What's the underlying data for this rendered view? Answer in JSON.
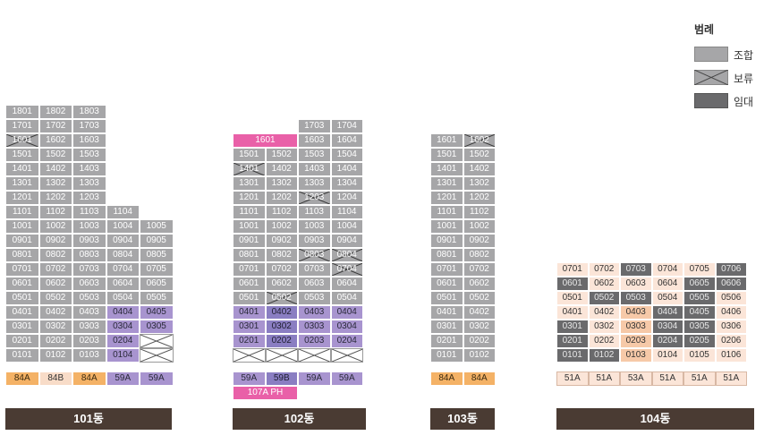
{
  "legend": {
    "title": "범례",
    "items": [
      {
        "label": "조합",
        "kind": "gray"
      },
      {
        "label": "보류",
        "kind": "hold"
      },
      {
        "label": "임대",
        "kind": "dark"
      }
    ]
  },
  "buildings": [
    {
      "name": "101동",
      "rows": [
        [
          [
            "1801",
            "gray"
          ],
          [
            "1802",
            "gray"
          ],
          [
            "1803",
            "gray"
          ]
        ],
        [
          [
            "1701",
            "gray"
          ],
          [
            "1702",
            "gray"
          ],
          [
            "1703",
            "gray"
          ]
        ],
        [
          [
            "1601",
            "hold"
          ],
          [
            "1602",
            "gray"
          ],
          [
            "1603",
            "gray"
          ]
        ],
        [
          [
            "1501",
            "gray"
          ],
          [
            "1502",
            "gray"
          ],
          [
            "1503",
            "gray"
          ]
        ],
        [
          [
            "1401",
            "gray"
          ],
          [
            "1402",
            "gray"
          ],
          [
            "1403",
            "gray"
          ]
        ],
        [
          [
            "1301",
            "gray"
          ],
          [
            "1302",
            "gray"
          ],
          [
            "1303",
            "gray"
          ]
        ],
        [
          [
            "1201",
            "gray"
          ],
          [
            "1202",
            "gray"
          ],
          [
            "1203",
            "gray"
          ]
        ],
        [
          [
            "1101",
            "gray"
          ],
          [
            "1102",
            "gray"
          ],
          [
            "1103",
            "gray"
          ],
          [
            "1104",
            "gray"
          ]
        ],
        [
          [
            "1001",
            "gray"
          ],
          [
            "1002",
            "gray"
          ],
          [
            "1003",
            "gray"
          ],
          [
            "1004",
            "gray"
          ],
          [
            "1005",
            "gray"
          ]
        ],
        [
          [
            "0901",
            "gray"
          ],
          [
            "0902",
            "gray"
          ],
          [
            "0903",
            "gray"
          ],
          [
            "0904",
            "gray"
          ],
          [
            "0905",
            "gray"
          ]
        ],
        [
          [
            "0801",
            "gray"
          ],
          [
            "0802",
            "gray"
          ],
          [
            "0803",
            "gray"
          ],
          [
            "0804",
            "gray"
          ],
          [
            "0805",
            "gray"
          ]
        ],
        [
          [
            "0701",
            "gray"
          ],
          [
            "0702",
            "gray"
          ],
          [
            "0703",
            "gray"
          ],
          [
            "0704",
            "gray"
          ],
          [
            "0705",
            "gray"
          ]
        ],
        [
          [
            "0601",
            "gray"
          ],
          [
            "0602",
            "gray"
          ],
          [
            "0603",
            "gray"
          ],
          [
            "0604",
            "gray"
          ],
          [
            "0605",
            "gray"
          ]
        ],
        [
          [
            "0501",
            "gray"
          ],
          [
            "0502",
            "gray"
          ],
          [
            "0503",
            "gray"
          ],
          [
            "0504",
            "gray"
          ],
          [
            "0505",
            "gray"
          ]
        ],
        [
          [
            "0401",
            "gray"
          ],
          [
            "0402",
            "gray"
          ],
          [
            "0403",
            "gray"
          ],
          [
            "0404",
            "purple"
          ],
          [
            "0405",
            "purple"
          ]
        ],
        [
          [
            "0301",
            "gray"
          ],
          [
            "0302",
            "gray"
          ],
          [
            "0303",
            "gray"
          ],
          [
            "0304",
            "purple"
          ],
          [
            "0305",
            "purple"
          ]
        ],
        [
          [
            "0201",
            "gray"
          ],
          [
            "0202",
            "gray"
          ],
          [
            "0203",
            "gray"
          ],
          [
            "0204",
            "purple"
          ],
          [
            "",
            "white-x"
          ]
        ],
        [
          [
            "0101",
            "gray"
          ],
          [
            "0102",
            "gray"
          ],
          [
            "0103",
            "gray"
          ],
          [
            "0104",
            "purple"
          ],
          [
            "",
            "white-x"
          ]
        ]
      ],
      "types": [
        [
          "84A",
          "orange"
        ],
        [
          "84B",
          "peach"
        ],
        [
          "84A",
          "orange"
        ],
        [
          "59A",
          "purple"
        ],
        [
          "59A",
          "purple"
        ]
      ],
      "extra_types": []
    },
    {
      "name": "102동",
      "rows": [
        [
          null,
          null,
          [
            "1703",
            "gray"
          ],
          [
            "1704",
            "gray"
          ]
        ],
        [
          [
            "1601",
            "pink",
            2
          ],
          [
            "1603",
            "gray"
          ],
          [
            "1604",
            "gray"
          ]
        ],
        [
          [
            "1501",
            "gray"
          ],
          [
            "1502",
            "gray"
          ],
          [
            "1503",
            "gray"
          ],
          [
            "1504",
            "gray"
          ]
        ],
        [
          [
            "1401",
            "hold"
          ],
          [
            "1402",
            "gray"
          ],
          [
            "1403",
            "gray"
          ],
          [
            "1404",
            "gray"
          ]
        ],
        [
          [
            "1301",
            "gray"
          ],
          [
            "1302",
            "gray"
          ],
          [
            "1303",
            "gray"
          ],
          [
            "1304",
            "gray"
          ]
        ],
        [
          [
            "1201",
            "gray"
          ],
          [
            "1202",
            "gray"
          ],
          [
            "1203",
            "hold"
          ],
          [
            "1204",
            "gray"
          ]
        ],
        [
          [
            "1101",
            "gray"
          ],
          [
            "1102",
            "gray"
          ],
          [
            "1103",
            "gray"
          ],
          [
            "1104",
            "gray"
          ]
        ],
        [
          [
            "1001",
            "gray"
          ],
          [
            "1002",
            "gray"
          ],
          [
            "1003",
            "gray"
          ],
          [
            "1004",
            "gray"
          ]
        ],
        [
          [
            "0901",
            "gray"
          ],
          [
            "0902",
            "gray"
          ],
          [
            "0903",
            "gray"
          ],
          [
            "0904",
            "gray"
          ]
        ],
        [
          [
            "0801",
            "gray"
          ],
          [
            "0802",
            "gray"
          ],
          [
            "0803",
            "hold"
          ],
          [
            "0804",
            "hold"
          ]
        ],
        [
          [
            "0701",
            "gray"
          ],
          [
            "0702",
            "gray"
          ],
          [
            "0703",
            "gray"
          ],
          [
            "0704",
            "hold"
          ]
        ],
        [
          [
            "0601",
            "gray"
          ],
          [
            "0602",
            "gray"
          ],
          [
            "0603",
            "gray"
          ],
          [
            "0604",
            "gray"
          ]
        ],
        [
          [
            "0501",
            "gray"
          ],
          [
            "0502",
            "hold"
          ],
          [
            "0503",
            "gray"
          ],
          [
            "0504",
            "gray"
          ]
        ],
        [
          [
            "0401",
            "purple"
          ],
          [
            "0402",
            "purple2"
          ],
          [
            "0403",
            "purple"
          ],
          [
            "0404",
            "purple"
          ]
        ],
        [
          [
            "0301",
            "purple"
          ],
          [
            "0302",
            "purple2"
          ],
          [
            "0303",
            "purple"
          ],
          [
            "0304",
            "purple"
          ]
        ],
        [
          [
            "0201",
            "purple"
          ],
          [
            "0202",
            "purple2"
          ],
          [
            "0203",
            "purple"
          ],
          [
            "0204",
            "purple"
          ]
        ],
        [
          [
            "",
            "white-x"
          ],
          [
            "",
            "white-x"
          ],
          [
            "",
            "white-x"
          ],
          [
            "",
            "white-x"
          ]
        ]
      ],
      "types": [
        [
          "59A",
          "purple"
        ],
        [
          "59B",
          "purple2"
        ],
        [
          "59A",
          "purple"
        ],
        [
          "59A",
          "purple"
        ]
      ],
      "extra_types": [
        [
          "107A PH",
          "pink"
        ]
      ]
    },
    {
      "name": "103동",
      "rows": [
        [
          [
            "1601",
            "gray"
          ],
          [
            "1602",
            "hold"
          ]
        ],
        [
          [
            "1501",
            "gray"
          ],
          [
            "1502",
            "gray"
          ]
        ],
        [
          [
            "1401",
            "gray"
          ],
          [
            "1402",
            "gray"
          ]
        ],
        [
          [
            "1301",
            "gray"
          ],
          [
            "1302",
            "gray"
          ]
        ],
        [
          [
            "1201",
            "gray"
          ],
          [
            "1202",
            "gray"
          ]
        ],
        [
          [
            "1101",
            "gray"
          ],
          [
            "1102",
            "gray"
          ]
        ],
        [
          [
            "1001",
            "gray"
          ],
          [
            "1002",
            "gray"
          ]
        ],
        [
          [
            "0901",
            "gray"
          ],
          [
            "0902",
            "gray"
          ]
        ],
        [
          [
            "0801",
            "gray"
          ],
          [
            "0802",
            "gray"
          ]
        ],
        [
          [
            "0701",
            "gray"
          ],
          [
            "0702",
            "gray"
          ]
        ],
        [
          [
            "0601",
            "gray"
          ],
          [
            "0602",
            "gray"
          ]
        ],
        [
          [
            "0501",
            "gray"
          ],
          [
            "0502",
            "gray"
          ]
        ],
        [
          [
            "0401",
            "gray"
          ],
          [
            "0402",
            "gray"
          ]
        ],
        [
          [
            "0301",
            "gray"
          ],
          [
            "0302",
            "gray"
          ]
        ],
        [
          [
            "0201",
            "gray"
          ],
          [
            "0202",
            "gray"
          ]
        ],
        [
          [
            "0101",
            "gray"
          ],
          [
            "0102",
            "gray"
          ]
        ]
      ],
      "types": [
        [
          "84A",
          "orange"
        ],
        [
          "84A",
          "orange"
        ]
      ],
      "extra_types": []
    },
    {
      "name": "104동",
      "rows": [
        [
          [
            "0701",
            "peach"
          ],
          [
            "0702",
            "peach"
          ],
          [
            "0703",
            "dark"
          ],
          [
            "0704",
            "peach"
          ],
          [
            "0705",
            "peach"
          ],
          [
            "0706",
            "dark"
          ]
        ],
        [
          [
            "0601",
            "dark"
          ],
          [
            "0602",
            "peach"
          ],
          [
            "0603",
            "peach"
          ],
          [
            "0604",
            "peach"
          ],
          [
            "0605",
            "dark"
          ],
          [
            "0606",
            "dark"
          ]
        ],
        [
          [
            "0501",
            "peach"
          ],
          [
            "0502",
            "dark"
          ],
          [
            "0503",
            "dark"
          ],
          [
            "0504",
            "peach"
          ],
          [
            "0505",
            "dark"
          ],
          [
            "0506",
            "peach"
          ]
        ],
        [
          [
            "0401",
            "peach"
          ],
          [
            "0402",
            "peach"
          ],
          [
            "0403",
            "peach2"
          ],
          [
            "0404",
            "dark"
          ],
          [
            "0405",
            "dark"
          ],
          [
            "0406",
            "peach"
          ]
        ],
        [
          [
            "0301",
            "dark"
          ],
          [
            "0302",
            "peach"
          ],
          [
            "0303",
            "peach2"
          ],
          [
            "0304",
            "dark"
          ],
          [
            "0305",
            "dark"
          ],
          [
            "0306",
            "peach"
          ]
        ],
        [
          [
            "0201",
            "dark"
          ],
          [
            "0202",
            "peach"
          ],
          [
            "0203",
            "peach2"
          ],
          [
            "0204",
            "dark"
          ],
          [
            "0205",
            "dark"
          ],
          [
            "0206",
            "peach"
          ]
        ],
        [
          [
            "0101",
            "dark"
          ],
          [
            "0102",
            "dark"
          ],
          [
            "0103",
            "peach2"
          ],
          [
            "0104",
            "peach"
          ],
          [
            "0105",
            "peach"
          ],
          [
            "0106",
            "peach"
          ]
        ]
      ],
      "types": [
        [
          "51A",
          "white"
        ],
        [
          "51A",
          "white"
        ],
        [
          "53A",
          "white"
        ],
        [
          "51A",
          "white"
        ],
        [
          "51A",
          "white"
        ],
        [
          "51A",
          "white"
        ]
      ],
      "extra_types": []
    }
  ]
}
